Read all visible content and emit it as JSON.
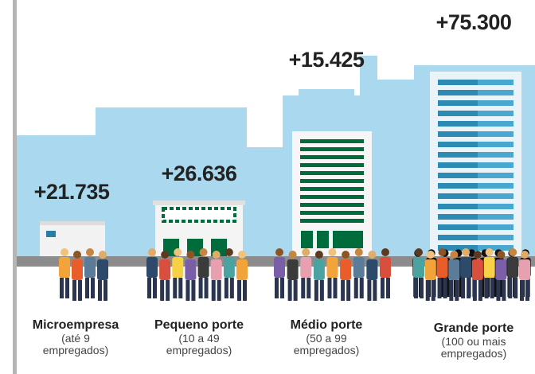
{
  "items": [
    {
      "value": "+21.735",
      "name": "Microempresa",
      "detail": "(até 9 empregados)"
    },
    {
      "value": "+26.636",
      "name": "Pequeno porte",
      "detail": "(10 a 49 empregados)"
    },
    {
      "value": "+15.425",
      "name": "Médio porte",
      "detail": "(50 a 99 empregados)"
    },
    {
      "value": "+75.300",
      "name": "Grande porte",
      "detail": "(100 ou mais empregados)"
    }
  ]
}
